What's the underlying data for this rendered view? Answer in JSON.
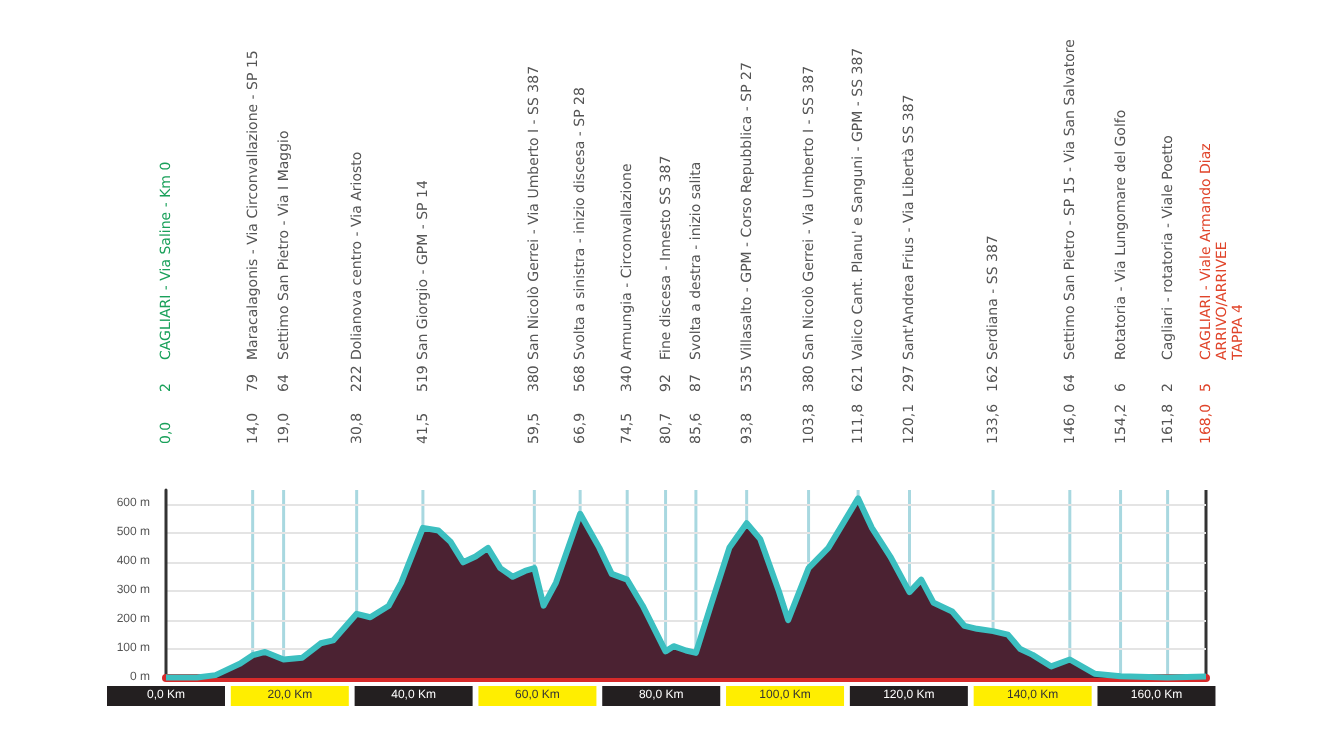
{
  "chart_data": {
    "type": "area",
    "x": [
      0,
      5,
      8,
      12,
      14,
      16,
      19,
      22,
      25,
      27,
      30.8,
      33,
      36,
      38,
      41.5,
      44,
      46,
      48,
      50,
      52,
      54,
      56,
      58,
      59.5,
      61,
      63,
      66.9,
      70,
      72,
      74.5,
      77,
      80.7,
      82,
      84,
      85.6,
      88,
      91,
      93.8,
      96,
      99,
      100.5,
      103.8,
      107,
      111.8,
      114,
      117,
      120.1,
      122,
      124,
      127,
      129,
      131,
      133.6,
      136,
      138,
      140,
      143,
      146,
      150,
      154.2,
      161.8,
      168
    ],
    "series": [
      {
        "color": "#4b2232",
        "values": [
          2,
          2,
          10,
          50,
          79,
          90,
          64,
          70,
          120,
          130,
          222,
          210,
          250,
          330,
          519,
          510,
          470,
          400,
          420,
          450,
          380,
          350,
          370,
          380,
          250,
          330,
          568,
          450,
          360,
          340,
          250,
          92,
          110,
          95,
          87,
          250,
          450,
          535,
          480,
          300,
          200,
          380,
          450,
          621,
          520,
          420,
          297,
          340,
          260,
          230,
          180,
          170,
          162,
          150,
          100,
          80,
          40,
          64,
          15,
          6,
          2,
          5
        ]
      }
    ],
    "xlim": [
      0,
      168
    ],
    "xticks": [
      {
        "value": 0,
        "label": "0,0 Km"
      },
      {
        "value": 20,
        "label": "20,0 Km"
      },
      {
        "value": 40,
        "label": "40,0 Km"
      },
      {
        "value": 60,
        "label": "60,0 Km"
      },
      {
        "value": 80,
        "label": "80,0 Km"
      },
      {
        "value": 100,
        "label": "100,0 Km"
      },
      {
        "value": 120,
        "label": "120,0 Km"
      },
      {
        "value": 140,
        "label": "140,0 Km"
      },
      {
        "value": 160,
        "label": "160,0 Km"
      }
    ],
    "ylim": [
      0,
      650
    ],
    "yticks": [
      {
        "value": 0,
        "label": "0 m"
      },
      {
        "value": 100,
        "label": "100 m"
      },
      {
        "value": 200,
        "label": "200 m"
      },
      {
        "value": 300,
        "label": "300 m"
      },
      {
        "value": 400,
        "label": "400 m"
      },
      {
        "value": 500,
        "label": "500 m"
      },
      {
        "value": 600,
        "label": "600 m"
      }
    ],
    "grid": "y",
    "annotations": [
      "0,0",
      "2",
      "CAGLIARI - Via Saline - Km 0",
      "14,0",
      "79",
      "Maracalagonis - Via Circonvallazione - SP 15",
      "19,0",
      "64",
      "Settimo San Pietro - Via I Maggio",
      "30,8",
      "222",
      "Dolianova centro - Via Ariosto",
      "41,5",
      "519",
      "San Giorgio - GPM - SP 14",
      "59,5",
      "380",
      "San Nicolò Gerrei - Via Umberto I - SS 387",
      "66,9",
      "568",
      "Svolta a sinistra - inizio discesa - SP 28",
      "74,5",
      "340",
      "Armungia - Circonvallazione",
      "80,7",
      "92",
      "Fine discesa - Innesto SS 387",
      "85,6",
      "87",
      "Svolta a destra - inizio salita",
      "93,8",
      "535",
      "Villasalto - GPM - Corso Repubblica - SP 27",
      "103,8",
      "380",
      "San Nicolò Gerrei - Via Umberto I - SS 387",
      "111,8",
      "621",
      "Valico Cant. Planu' e Sanguni - GPM - SS 387",
      "120,1",
      "297",
      "Sant'Andrea Frius - Via Libertà SS 387",
      "133,6",
      "162",
      "Serdiana - SS 387",
      "146,0",
      "64",
      "Settimo San Pietro - SP 15 - Via San Salvatore",
      "154,2",
      "6",
      "Rotatoria - Via Lungomare del Golfo",
      "161,8",
      "2",
      "Cagliari - rotatoria - Viale Poetto",
      "168,0",
      "5",
      "CAGLIARI - Viale Armando Diaz\nARRIVO/ARRIVEE\nTAPPA 4"
    ],
    "ref_lines": [
      {
        "axis": "x",
        "value": 14.0,
        "color": "#a8d8e0"
      },
      {
        "axis": "x",
        "value": 19.0,
        "color": "#a8d8e0"
      },
      {
        "axis": "x",
        "value": 30.8,
        "color": "#a8d8e0"
      },
      {
        "axis": "x",
        "value": 41.5,
        "color": "#a8d8e0"
      },
      {
        "axis": "x",
        "value": 59.5,
        "color": "#a8d8e0"
      },
      {
        "axis": "x",
        "value": 66.9,
        "color": "#a8d8e0"
      },
      {
        "axis": "x",
        "value": 74.5,
        "color": "#a8d8e0"
      },
      {
        "axis": "x",
        "value": 80.7,
        "color": "#a8d8e0"
      },
      {
        "axis": "x",
        "value": 85.6,
        "color": "#a8d8e0"
      },
      {
        "axis": "x",
        "value": 93.8,
        "color": "#a8d8e0"
      },
      {
        "axis": "x",
        "value": 103.8,
        "color": "#a8d8e0"
      },
      {
        "axis": "x",
        "value": 111.8,
        "color": "#a8d8e0"
      },
      {
        "axis": "x",
        "value": 120.1,
        "color": "#a8d8e0"
      },
      {
        "axis": "x",
        "value": 133.6,
        "color": "#a8d8e0"
      },
      {
        "axis": "x",
        "value": 146.0,
        "color": "#a8d8e0"
      },
      {
        "axis": "x",
        "value": 154.2,
        "color": "#a8d8e0"
      },
      {
        "axis": "x",
        "value": 161.8,
        "color": "#a8d8e0"
      },
      {
        "axis": "x",
        "value": 168.0,
        "color": "#333333"
      }
    ]
  }
}
